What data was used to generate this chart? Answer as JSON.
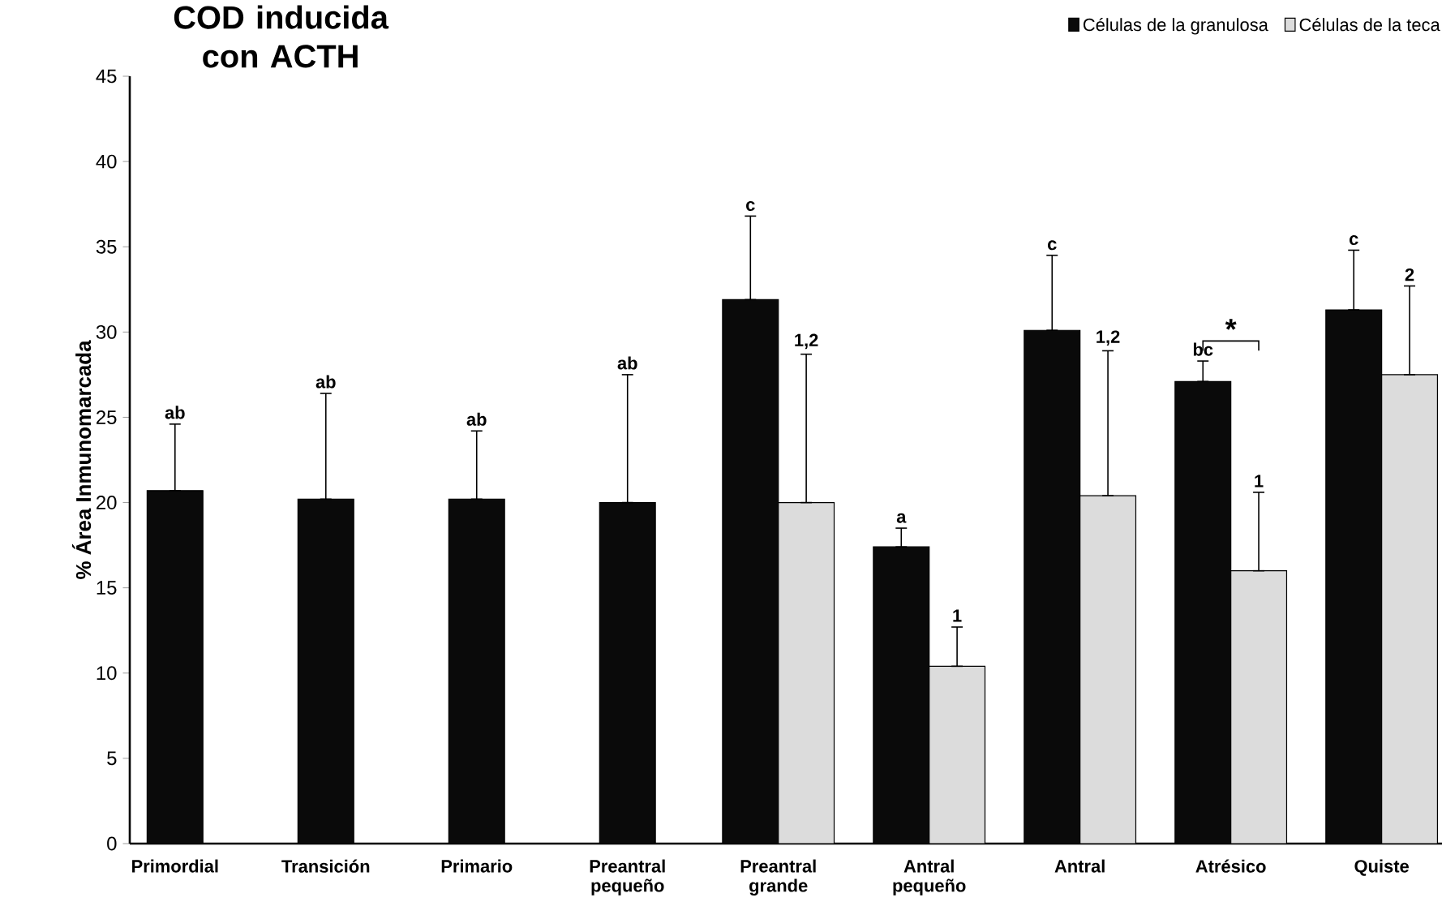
{
  "chart_data": {
    "type": "bar",
    "title": "COD inducida con ACTH",
    "ylabel": "% Área Inmunomarcada",
    "categories": [
      "Primordial",
      "Transición",
      "Primario",
      "Preantral pequeño",
      "Preantral grande",
      "Antral pequeño",
      "Antral",
      "Atrésico",
      "Quiste"
    ],
    "series": [
      {
        "name": "Células de la granulosa",
        "color": "#0a0a0a",
        "values": [
          20.7,
          20.2,
          20.2,
          20.0,
          31.9,
          17.4,
          30.1,
          27.1,
          31.3
        ],
        "errors": [
          [
            20.7,
            24.6
          ],
          [
            20.2,
            26.4
          ],
          [
            20.2,
            24.2
          ],
          [
            20.0,
            27.5
          ],
          [
            31.9,
            36.8
          ],
          [
            17.4,
            18.5
          ],
          [
            30.1,
            34.5
          ],
          [
            27.1,
            28.3
          ],
          [
            31.3,
            34.8
          ]
        ]
      },
      {
        "name": "Células de la teca",
        "color": "#dcdcdc",
        "values": [
          null,
          null,
          null,
          null,
          20.0,
          10.4,
          20.4,
          16.0,
          27.5
        ],
        "errors": [
          null,
          null,
          null,
          null,
          [
            20.0,
            28.7
          ],
          [
            10.4,
            12.7
          ],
          [
            20.4,
            28.9
          ],
          [
            16.0,
            20.6
          ],
          [
            27.5,
            32.7
          ]
        ]
      }
    ],
    "ylim": [
      0,
      45
    ],
    "yticks": [
      0,
      5,
      10,
      15,
      20,
      25,
      30,
      35,
      40,
      45
    ],
    "grid": false,
    "legend": "top right",
    "annotations": [
      "ab",
      "ab",
      "ab",
      "ab",
      "c",
      "1,2",
      "a",
      "1",
      "c",
      "1,2",
      "bc",
      "1",
      "c",
      "2",
      "*"
    ]
  }
}
